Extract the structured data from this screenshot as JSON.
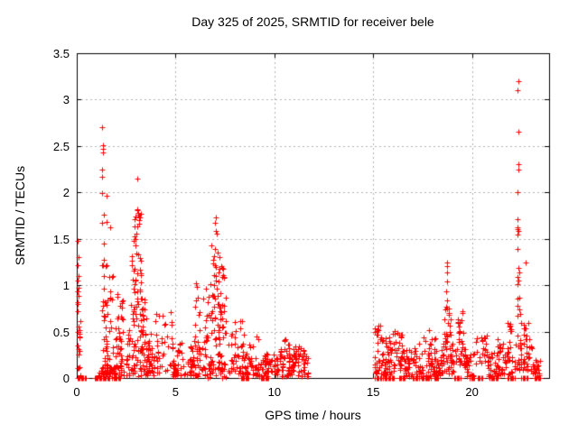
{
  "chart_data": {
    "type": "scatter",
    "title": "Day 325 of 2025, SRMTID for receiver bele",
    "xlabel": "GPS time / hours",
    "ylabel": "SRMTID / TECUs",
    "xlim": [
      0,
      23.9
    ],
    "ylim": [
      0,
      3.5
    ],
    "xticks": [
      0,
      5,
      10,
      15,
      20
    ],
    "yticks": [
      0,
      0.5,
      1,
      1.5,
      2,
      2.5,
      3,
      3.5
    ],
    "grid": true,
    "legend": "none",
    "marker": "plus",
    "marker_color": "#ff0000",
    "axis_color": "#000000",
    "grid_color": "#b0b0b0",
    "series_name": "SRMTID",
    "outlier_points": [
      [
        0.05,
        1.48
      ],
      [
        0.07,
        1.3
      ],
      [
        0.05,
        1.22
      ],
      [
        0.08,
        1.1
      ],
      [
        0.05,
        1.05
      ],
      [
        0.1,
        0.97
      ],
      [
        0.06,
        0.93
      ],
      [
        0.1,
        0.88
      ],
      [
        0.04,
        0.72
      ],
      [
        0.08,
        0.55
      ],
      [
        0.05,
        0.5
      ],
      [
        0.12,
        0.45
      ],
      [
        0.06,
        0.35
      ],
      [
        0.1,
        0.25
      ],
      [
        1.28,
        2.7
      ],
      [
        1.32,
        2.51
      ],
      [
        1.33,
        2.47
      ],
      [
        1.34,
        2.43
      ],
      [
        1.28,
        2.25
      ],
      [
        1.29,
        2.17
      ],
      [
        1.27,
        1.99
      ],
      [
        1.5,
        1.96
      ],
      [
        1.37,
        1.76
      ],
      [
        1.5,
        1.68
      ],
      [
        1.28,
        1.67
      ],
      [
        1.68,
        1.62
      ],
      [
        1.36,
        1.45
      ],
      [
        1.28,
        1.22
      ],
      [
        1.5,
        1.22
      ],
      [
        3.05,
        2.15
      ],
      [
        7.03,
        1.73
      ],
      [
        7.0,
        1.67
      ],
      [
        7.05,
        1.58
      ],
      [
        7.07,
        1.56
      ],
      [
        6.8,
        1.43
      ],
      [
        7.0,
        1.39
      ],
      [
        7.12,
        1.35
      ],
      [
        6.95,
        1.31
      ],
      [
        7.2,
        1.3
      ],
      [
        6.88,
        1.27
      ],
      [
        18.72,
        1.24
      ],
      [
        18.73,
        1.21
      ],
      [
        18.75,
        1.14
      ],
      [
        18.72,
        1.04
      ],
      [
        18.68,
        0.93
      ],
      [
        18.73,
        0.84
      ],
      [
        18.7,
        0.77
      ],
      [
        22.33,
        3.2
      ],
      [
        22.32,
        3.1
      ],
      [
        22.33,
        2.65
      ],
      [
        22.33,
        2.3
      ],
      [
        22.34,
        2.25
      ],
      [
        22.3,
        2.0
      ],
      [
        22.32,
        1.71
      ],
      [
        22.3,
        1.62
      ],
      [
        22.31,
        1.6
      ],
      [
        22.33,
        1.58
      ],
      [
        22.3,
        1.55
      ],
      [
        22.31,
        1.39
      ],
      [
        22.35,
        1.19
      ],
      [
        22.4,
        1.14
      ],
      [
        22.3,
        1.09
      ],
      [
        22.35,
        1.05
      ],
      [
        22.29,
        1.01
      ],
      [
        22.4,
        0.87
      ],
      [
        22.28,
        0.86
      ],
      [
        22.32,
        0.78
      ],
      [
        22.38,
        0.74
      ],
      [
        22.3,
        0.67
      ],
      [
        22.45,
        0.69
      ],
      [
        22.5,
        0.59
      ],
      [
        22.7,
        1.24
      ],
      [
        22.83,
        0.59
      ]
    ],
    "cluster_format": [
      "x_start_hours",
      "x_end_hours",
      "y_min_tecu",
      "y_max_tecu",
      "point_count",
      "bottom_bias"
    ],
    "clusters": [
      [
        0.02,
        0.18,
        0.02,
        1.0,
        16,
        2.0
      ],
      [
        1.25,
        1.5,
        0.1,
        1.35,
        28,
        1.4
      ],
      [
        1.5,
        1.85,
        0.05,
        1.1,
        30,
        1.8
      ],
      [
        1.95,
        2.35,
        0.1,
        0.95,
        40,
        1.5
      ],
      [
        1.05,
        2.4,
        0.0,
        0.12,
        45,
        1.0
      ],
      [
        2.9,
        3.25,
        1.5,
        1.82,
        15,
        1.0
      ],
      [
        2.8,
        3.3,
        0.85,
        1.5,
        30,
        1.3
      ],
      [
        2.55,
        3.5,
        0.3,
        0.85,
        45,
        1.3
      ],
      [
        2.45,
        3.95,
        0.02,
        0.3,
        55,
        1.3
      ],
      [
        3.2,
        3.85,
        0.1,
        0.8,
        30,
        1.9
      ],
      [
        3.95,
        4.8,
        0.05,
        0.75,
        35,
        1.9
      ],
      [
        4.8,
        6.35,
        0.02,
        0.38,
        85,
        1.6
      ],
      [
        5.85,
        6.5,
        0.3,
        1.05,
        16,
        1.7
      ],
      [
        6.85,
        7.5,
        1.02,
        1.25,
        16,
        1.0
      ],
      [
        6.5,
        7.6,
        0.55,
        1.02,
        40,
        1.3
      ],
      [
        6.4,
        7.7,
        0.08,
        0.55,
        55,
        1.3
      ],
      [
        6.45,
        7.75,
        0.0,
        0.1,
        22,
        1.0
      ],
      [
        7.8,
        8.45,
        0.04,
        0.62,
        40,
        1.7
      ],
      [
        8.5,
        9.2,
        0.03,
        0.45,
        42,
        1.6
      ],
      [
        9.2,
        11.75,
        0.02,
        0.27,
        135,
        1.5
      ],
      [
        10.25,
        10.75,
        0.25,
        0.42,
        12,
        1.2
      ],
      [
        10.95,
        11.55,
        0.18,
        0.35,
        14,
        1.2
      ],
      [
        15.05,
        15.35,
        0.05,
        0.58,
        26,
        1.5
      ],
      [
        15.35,
        16.0,
        0.03,
        0.45,
        45,
        1.7
      ],
      [
        16.0,
        16.45,
        0.08,
        0.53,
        30,
        1.4
      ],
      [
        16.45,
        17.3,
        0.02,
        0.35,
        50,
        1.6
      ],
      [
        17.3,
        18.25,
        0.02,
        0.55,
        48,
        1.9
      ],
      [
        18.05,
        18.5,
        0.03,
        0.33,
        28,
        1.4
      ],
      [
        18.6,
        18.92,
        0.38,
        0.75,
        22,
        1.2
      ],
      [
        18.45,
        19.05,
        0.05,
        0.38,
        35,
        1.3
      ],
      [
        19.25,
        19.55,
        0.5,
        0.72,
        10,
        1.2
      ],
      [
        19.15,
        19.65,
        0.12,
        0.5,
        28,
        1.3
      ],
      [
        19.6,
        20.15,
        0.02,
        0.28,
        28,
        1.5
      ],
      [
        20.2,
        20.8,
        0.15,
        0.47,
        24,
        1.4
      ],
      [
        20.8,
        21.35,
        0.02,
        0.3,
        30,
        1.5
      ],
      [
        21.3,
        22.05,
        0.04,
        0.47,
        45,
        1.4
      ],
      [
        21.8,
        22.0,
        0.5,
        0.6,
        8,
        1.0
      ],
      [
        22.15,
        22.5,
        0.08,
        0.5,
        22,
        1.2
      ],
      [
        22.55,
        23.05,
        0.08,
        0.6,
        32,
        1.6
      ],
      [
        23.05,
        23.5,
        0.02,
        0.22,
        20,
        1.3
      ]
    ],
    "zero_run_format": [
      "x_start_hours",
      "x_end_hours",
      "point_count"
    ],
    "zero_runs": [
      [
        0.03,
        0.45,
        8
      ],
      [
        0.9,
        1.65,
        14
      ],
      [
        1.8,
        2.2,
        8
      ],
      [
        8.3,
        8.7,
        8
      ],
      [
        9.3,
        9.7,
        8
      ],
      [
        15.1,
        15.4,
        6
      ],
      [
        15.5,
        16.05,
        10
      ],
      [
        16.3,
        16.6,
        6
      ],
      [
        17.0,
        17.3,
        6
      ],
      [
        17.45,
        17.9,
        9
      ],
      [
        18.1,
        18.3,
        5
      ],
      [
        19.1,
        19.4,
        6
      ],
      [
        19.9,
        20.1,
        5
      ],
      [
        20.3,
        20.5,
        5
      ],
      [
        20.9,
        21.3,
        8
      ],
      [
        21.8,
        22.15,
        7
      ],
      [
        22.5,
        22.8,
        6
      ],
      [
        23.15,
        23.45,
        6
      ]
    ]
  }
}
